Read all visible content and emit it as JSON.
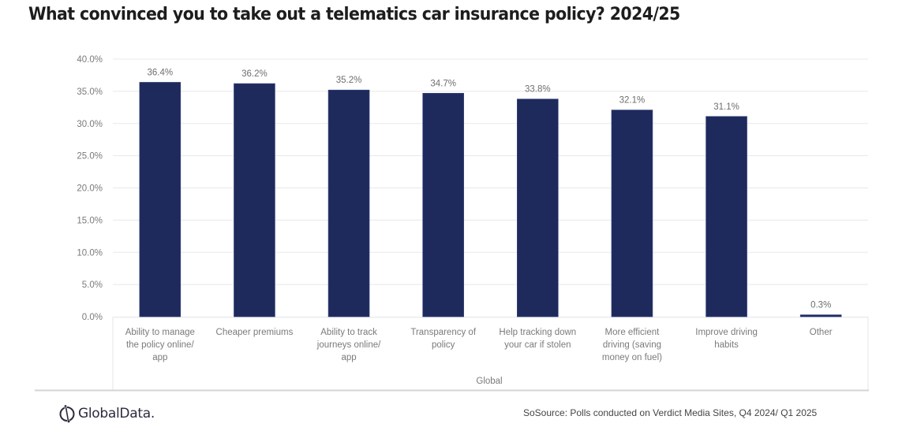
{
  "title": "What convinced you to take out a telematics car insurance policy? 2024/25",
  "chart_data": {
    "type": "bar",
    "title": "What convinced you to take out a telematics car insurance policy? 2024/25",
    "xlabel": "Global",
    "ylabel": "",
    "ylim": [
      0,
      40
    ],
    "yticks": [
      "0.0%",
      "5.0%",
      "10.0%",
      "15.0%",
      "20.0%",
      "25.0%",
      "30.0%",
      "35.0%",
      "40.0%"
    ],
    "grid": true,
    "bar_color": "#1f2a5c",
    "categories": [
      [
        "Ability to manage",
        "the policy online/",
        "app"
      ],
      [
        "Cheaper premiums"
      ],
      [
        "Ability to track",
        "journeys online/",
        "app"
      ],
      [
        "Transparency of",
        "policy"
      ],
      [
        "Help tracking down",
        "your car if stolen"
      ],
      [
        "More efficient",
        "driving (saving",
        "money on fuel)"
      ],
      [
        "Improve driving",
        "habits"
      ],
      [
        "Other"
      ]
    ],
    "values": [
      36.4,
      36.2,
      35.2,
      34.7,
      33.8,
      32.1,
      31.1,
      0.3
    ],
    "data_labels": [
      "36.4%",
      "36.2%",
      "35.2%",
      "34.7%",
      "33.8%",
      "32.1%",
      "31.1%",
      "0.3%"
    ]
  },
  "footer": {
    "logo_text": "GlobalData.",
    "source": "SoSource: Polls conducted on Verdict Media Sites, Q4 2024/ Q1 2025"
  }
}
